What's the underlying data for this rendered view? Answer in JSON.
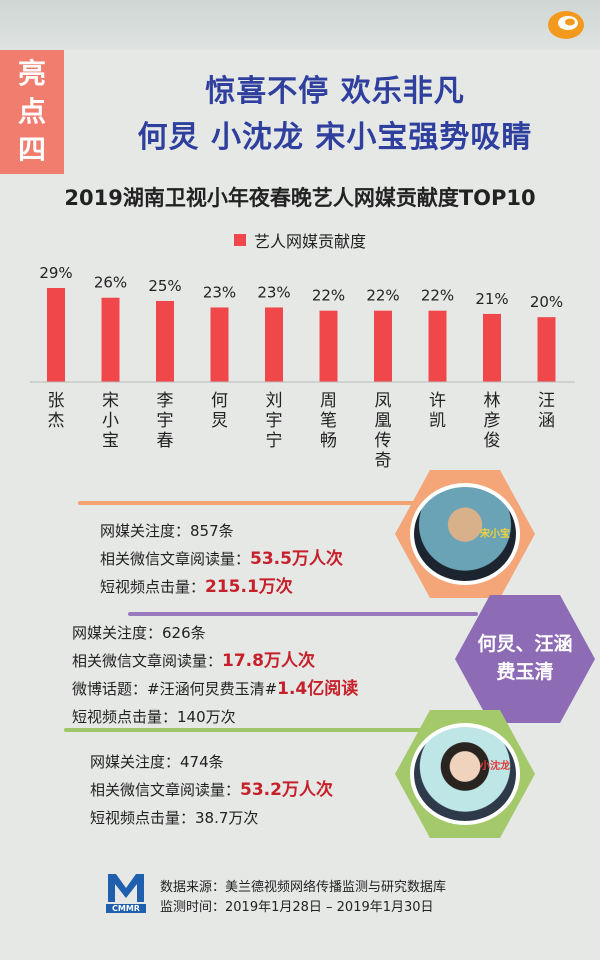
{
  "badge": {
    "chars": [
      "亮",
      "点",
      "四"
    ]
  },
  "headline": {
    "line1": "惊喜不停 欢乐非凡",
    "line2": "何炅 小沈龙 宋小宝强势吸睛"
  },
  "chart_data": {
    "type": "bar",
    "title": "2019湖南卫视小年夜春晚艺人网媒贡献度TOP10",
    "series": [
      {
        "name": "艺人网媒贡献度",
        "values": [
          29,
          26,
          25,
          23,
          23,
          22,
          22,
          22,
          21,
          20
        ]
      }
    ],
    "categories": [
      "张杰",
      "宋小宝",
      "李宇春",
      "何炅",
      "刘宇宁",
      "周笔畅",
      "凤凰传奇",
      "许凯",
      "林彦俊",
      "汪涵"
    ],
    "value_labels": [
      "29%",
      "26%",
      "25%",
      "23%",
      "23%",
      "22%",
      "22%",
      "22%",
      "21%",
      "20%"
    ],
    "ylim": [
      0,
      29
    ],
    "legend_position": "top",
    "grid": false,
    "bar_color": "#f0474a"
  },
  "info_blocks": [
    {
      "lines": [
        {
          "label": "网媒关注度：857条",
          "highlight": ""
        },
        {
          "label": "相关微信文章阅读量：",
          "highlight": "53.5万人次"
        },
        {
          "label": "短视频点击量：",
          "highlight": "215.1万次"
        }
      ],
      "avatar_tag": "宋小宝",
      "line_color": "#f2a36f",
      "hex_color": "#f4a679"
    },
    {
      "lines": [
        {
          "label": "网媒关注度：626条",
          "highlight": ""
        },
        {
          "label": "相关微信文章阅读量：",
          "highlight": "17.8万人次"
        },
        {
          "label": "微博话题：#汪涵何炅费玉清#",
          "highlight": "1.4亿阅读"
        },
        {
          "label": "短视频点击量：140万次",
          "highlight": ""
        }
      ],
      "hex_label": [
        "何炅、汪涵",
        "费玉清"
      ],
      "line_color": "#9a78bd",
      "hex_color": "#8d6bb5"
    },
    {
      "lines": [
        {
          "label": "网媒关注度：474条",
          "highlight": ""
        },
        {
          "label": "相关微信文章阅读量：",
          "highlight": "53.2万人次"
        },
        {
          "label": "短视频点击量：38.7万次",
          "highlight": ""
        }
      ],
      "avatar_tag": "小沈龙",
      "line_color": "#9fc66a",
      "hex_color": "#a3c96b"
    }
  ],
  "footer": {
    "logo_text": "CMMR",
    "source": "数据来源：美兰德视频网络传播监测与研究数据库",
    "period": "监测时间：2019年1月28日 – 2019年1月30日"
  }
}
